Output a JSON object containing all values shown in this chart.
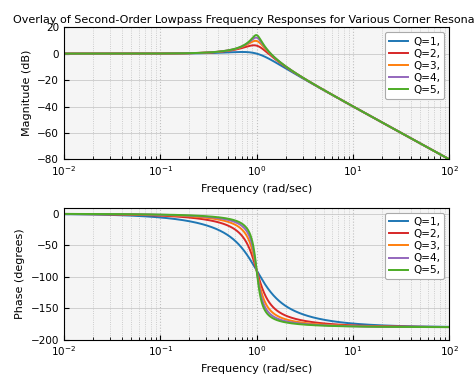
{
  "title": "Overlay of Second-Order Lowpass Frequency Responses for Various Corner Resonances",
  "Q_values": [
    1,
    2,
    3,
    4,
    5
  ],
  "colors": [
    "#1f77b4",
    "#d62728",
    "#ff7f0e",
    "#9467bd",
    "#4dac26"
  ],
  "legend_labels": [
    "Q=1,",
    "Q=2,",
    "Q=3,",
    "Q=4,",
    "Q=5,"
  ],
  "freq_min": 0.01,
  "freq_max": 100,
  "mag_ylim": [
    -80,
    20
  ],
  "mag_yticks": [
    -80,
    -60,
    -40,
    -20,
    0,
    20
  ],
  "phase_ylim": [
    -200,
    10
  ],
  "phase_yticks": [
    -200,
    -150,
    -100,
    -50,
    0
  ],
  "mag_ylabel": "Magnitude (dB)",
  "phase_ylabel": "Phase (degrees)",
  "xlabel": "Frequency (rad/sec)",
  "axes_bg_color": "#f5f5f5",
  "fig_bg_color": "#ffffff",
  "grid_color": "#c0c0c0",
  "spine_color": "#000000",
  "title_fontsize": 8.0,
  "label_fontsize": 8.0,
  "legend_fontsize": 7.5,
  "tick_fontsize": 7.5,
  "linewidth": 1.4
}
